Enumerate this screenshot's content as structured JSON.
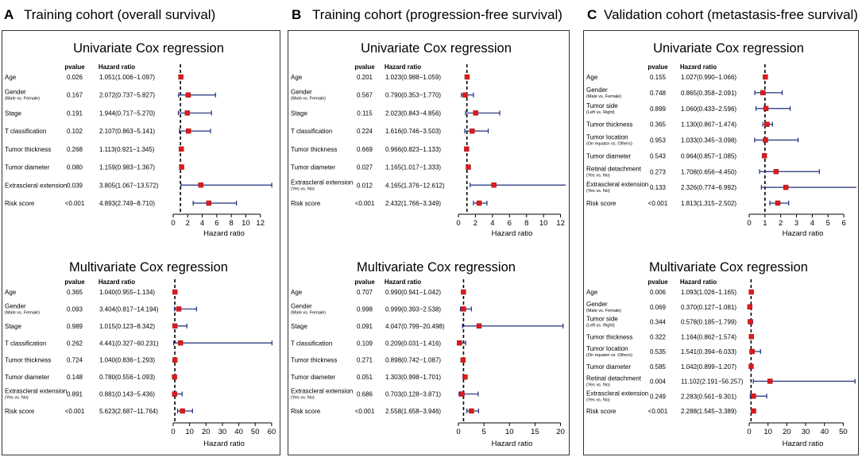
{
  "figure": {
    "panels": [
      {
        "letter": "A",
        "title": "Training cohort (overall survival)",
        "pvalue_header": "pvalue",
        "hr_header": "Hazard ratio",
        "xlabel": "Hazard ratio",
        "accent": "#e0191c",
        "ci_color": "#1f2f7a",
        "blocks": [
          {
            "title": "Univariate Cox regression",
            "chart_data": {
              "type": "forest",
              "reference": 1,
              "xlim": [
                0,
                14
              ],
              "ticks": [
                0,
                2,
                4,
                6,
                8,
                10,
                12
              ],
              "rows": [
                {
                  "label": "Age",
                  "sub": "",
                  "p": "0.026",
                  "hr_text": "1.051(1.006−1.097)",
                  "hr": 1.051,
                  "lo": 1.006,
                  "hi": 1.097
                },
                {
                  "label": "Gender",
                  "sub": "(Male vs. Female)",
                  "p": "0.167",
                  "hr_text": "2.072(0.737−5.827)",
                  "hr": 2.072,
                  "lo": 0.737,
                  "hi": 5.827
                },
                {
                  "label": "Stage",
                  "sub": "",
                  "p": "0.191",
                  "hr_text": "1.944(0.717−5.270)",
                  "hr": 1.944,
                  "lo": 0.717,
                  "hi": 5.27
                },
                {
                  "label": "T classification",
                  "sub": "",
                  "p": "0.102",
                  "hr_text": "2.107(0.863−5.141)",
                  "hr": 2.107,
                  "lo": 0.863,
                  "hi": 5.141
                },
                {
                  "label": "Tumor thickness",
                  "sub": "",
                  "p": "0.268",
                  "hr_text": "1.113(0.921−1.345)",
                  "hr": 1.113,
                  "lo": 0.921,
                  "hi": 1.345
                },
                {
                  "label": "Tumor diameter",
                  "sub": "",
                  "p": "0.080",
                  "hr_text": "1.159(0.983−1.367)",
                  "hr": 1.159,
                  "lo": 0.983,
                  "hi": 1.367
                },
                {
                  "label": "Extrascleral extension",
                  "sub": "",
                  "p": "0.039",
                  "hr_text": "3.805(1.067−13.572)",
                  "hr": 3.805,
                  "lo": 1.067,
                  "hi": 13.572
                },
                {
                  "label": "Risk score",
                  "sub": "",
                  "p": "<0.001",
                  "hr_text": "4.893(2.749−8.710)",
                  "hr": 4.893,
                  "lo": 2.749,
                  "hi": 8.71
                }
              ]
            }
          },
          {
            "title": "Multivariate Cox regression",
            "chart_data": {
              "type": "forest",
              "reference": 1,
              "xlim": [
                0,
                62
              ],
              "ticks": [
                0,
                10,
                20,
                30,
                40,
                50,
                60
              ],
              "rows": [
                {
                  "label": "Age",
                  "sub": "",
                  "p": "0.365",
                  "hr_text": "1.040(0.955−1.134)",
                  "hr": 1.04,
                  "lo": 0.955,
                  "hi": 1.134
                },
                {
                  "label": "Gender",
                  "sub": "(Male vs. Female)",
                  "p": "0.093",
                  "hr_text": "3.404(0.817−14.194)",
                  "hr": 3.404,
                  "lo": 0.817,
                  "hi": 14.194
                },
                {
                  "label": "Stage",
                  "sub": "",
                  "p": "0.989",
                  "hr_text": "1.015(0.123−8.342)",
                  "hr": 1.015,
                  "lo": 0.123,
                  "hi": 8.342
                },
                {
                  "label": "T classification",
                  "sub": "",
                  "p": "0.262",
                  "hr_text": "4.441(0.327−60.231)",
                  "hr": 4.441,
                  "lo": 0.327,
                  "hi": 60.231
                },
                {
                  "label": "Tumor thickness",
                  "sub": "",
                  "p": "0.724",
                  "hr_text": "1.040(0.836−1.293)",
                  "hr": 1.04,
                  "lo": 0.836,
                  "hi": 1.293
                },
                {
                  "label": "Tumor diameter",
                  "sub": "",
                  "p": "0.148",
                  "hr_text": "0.780(0.556−1.093)",
                  "hr": 0.78,
                  "lo": 0.556,
                  "hi": 1.093
                },
                {
                  "label": "Extrascleral extension",
                  "sub": "(Yes vs. No)",
                  "p": "0.891",
                  "hr_text": "0.881(0.143−5.436)",
                  "hr": 0.881,
                  "lo": 0.143,
                  "hi": 5.436
                },
                {
                  "label": "Risk score",
                  "sub": "",
                  "p": "<0.001",
                  "hr_text": "5.623(2.687−11.764)",
                  "hr": 5.623,
                  "lo": 2.687,
                  "hi": 11.764
                }
              ]
            }
          }
        ]
      },
      {
        "letter": "B",
        "title": "Training cohort (progression-free survival)",
        "pvalue_header": "pvalue",
        "hr_header": "Hazard ratio",
        "xlabel": "Hazard ratio",
        "accent": "#e0191c",
        "ci_color": "#1f2f7a",
        "blocks": [
          {
            "title": "Univariate Cox regression",
            "chart_data": {
              "type": "forest",
              "reference": 1,
              "xlim": [
                0,
                12.6
              ],
              "ticks": [
                0,
                2,
                4,
                6,
                8,
                10,
                12
              ],
              "rows": [
                {
                  "label": "Age",
                  "sub": "",
                  "p": "0.201",
                  "hr_text": "1.023(0.988−1.059)",
                  "hr": 1.023,
                  "lo": 0.988,
                  "hi": 1.059
                },
                {
                  "label": "Gender",
                  "sub": "(Male vs. Female)",
                  "p": "0.567",
                  "hr_text": "0.790(0.353−1.770)",
                  "hr": 0.79,
                  "lo": 0.353,
                  "hi": 1.77
                },
                {
                  "label": "Stage",
                  "sub": "",
                  "p": "0.115",
                  "hr_text": "2.023(0.843−4.856)",
                  "hr": 2.023,
                  "lo": 0.843,
                  "hi": 4.856
                },
                {
                  "label": "T classification",
                  "sub": "",
                  "p": "0.224",
                  "hr_text": "1.616(0.746−3.503)",
                  "hr": 1.616,
                  "lo": 0.746,
                  "hi": 3.503
                },
                {
                  "label": "Tumor thickness",
                  "sub": "",
                  "p": "0.669",
                  "hr_text": "0.966(0.823−1.133)",
                  "hr": 0.966,
                  "lo": 0.823,
                  "hi": 1.133
                },
                {
                  "label": "Tumor diameter",
                  "sub": "",
                  "p": "0.027",
                  "hr_text": "1.165(1.017−1.333)",
                  "hr": 1.165,
                  "lo": 1.017,
                  "hi": 1.333
                },
                {
                  "label": "Extrascleral extension",
                  "sub": "(Yes vs. No)",
                  "p": "0.012",
                  "hr_text": "4.165(1.376−12.612)",
                  "hr": 4.165,
                  "lo": 1.376,
                  "hi": 12.612
                },
                {
                  "label": "Risk score",
                  "sub": "",
                  "p": "<0.001",
                  "hr_text": "2.432(1.766−3.349)",
                  "hr": 2.432,
                  "lo": 1.766,
                  "hi": 3.349
                }
              ]
            }
          },
          {
            "title": "Multivariate Cox regression",
            "chart_data": {
              "type": "forest",
              "reference": 1,
              "xlim": [
                0,
                21
              ],
              "ticks": [
                0,
                5,
                10,
                15,
                20
              ],
              "rows": [
                {
                  "label": "Age",
                  "sub": "",
                  "p": "0.707",
                  "hr_text": "0.990(0.941−1.042)",
                  "hr": 0.99,
                  "lo": 0.941,
                  "hi": 1.042
                },
                {
                  "label": "Gender",
                  "sub": "(Male vs. Female)",
                  "p": "0.998",
                  "hr_text": "0.999(0.393−2.538)",
                  "hr": 0.999,
                  "lo": 0.393,
                  "hi": 2.538
                },
                {
                  "label": "Stage",
                  "sub": "",
                  "p": "0.091",
                  "hr_text": "4.047(0.799−20.498)",
                  "hr": 4.047,
                  "lo": 0.799,
                  "hi": 20.498
                },
                {
                  "label": "T classification",
                  "sub": "",
                  "p": "0.109",
                  "hr_text": "0.209(0.031−1.416)",
                  "hr": 0.209,
                  "lo": 0.031,
                  "hi": 1.416
                },
                {
                  "label": "Tumor thickness",
                  "sub": "",
                  "p": "0.271",
                  "hr_text": "0.898(0.742−1.087)",
                  "hr": 0.898,
                  "lo": 0.742,
                  "hi": 1.087
                },
                {
                  "label": "Tumor diameter",
                  "sub": "",
                  "p": "0.051",
                  "hr_text": "1.303(0.998−1.701)",
                  "hr": 1.303,
                  "lo": 0.998,
                  "hi": 1.701
                },
                {
                  "label": "Extrascleral extension",
                  "sub": "(Yes vs. No)",
                  "p": "0.686",
                  "hr_text": "0.703(0.128−3.871)",
                  "hr": 0.703,
                  "lo": 0.128,
                  "hi": 3.871
                },
                {
                  "label": "Risk score",
                  "sub": "",
                  "p": "<0.001",
                  "hr_text": "2.558(1.658−3.946)",
                  "hr": 2.558,
                  "lo": 1.658,
                  "hi": 3.946
                }
              ]
            }
          }
        ]
      },
      {
        "letter": "C",
        "title": "Validation cohort (metastasis-free survival)",
        "pvalue_header": "pvalue",
        "hr_header": "Hazard ratio",
        "xlabel": "Hazard ratio",
        "accent": "#e0191c",
        "ci_color": "#1f2f7a",
        "blocks": [
          {
            "title": "Univariate Cox regression",
            "chart_data": {
              "type": "forest",
              "reference": 1,
              "xlim": [
                0,
                6.8
              ],
              "ticks": [
                0,
                1,
                2,
                3,
                4,
                5,
                6
              ],
              "rows": [
                {
                  "label": "Age",
                  "sub": "",
                  "p": "0.155",
                  "hr_text": "1.027(0.990−1.066)",
                  "hr": 1.027,
                  "lo": 0.99,
                  "hi": 1.066
                },
                {
                  "label": "Gender",
                  "sub": "(Male vs. Female)",
                  "p": "0.748",
                  "hr_text": "0.865(0.358−2.091)",
                  "hr": 0.865,
                  "lo": 0.358,
                  "hi": 2.091
                },
                {
                  "label": "Tumor side",
                  "sub": "(Left vs. Right)",
                  "p": "0.899",
                  "hr_text": "1.060(0.433−2.596)",
                  "hr": 1.06,
                  "lo": 0.433,
                  "hi": 2.596
                },
                {
                  "label": "Tumor thickness",
                  "sub": "",
                  "p": "0.365",
                  "hr_text": "1.130(0.867−1.474)",
                  "hr": 1.13,
                  "lo": 0.867,
                  "hi": 1.474
                },
                {
                  "label": "Tumor location",
                  "sub": "(On equator vs. Others)",
                  "p": "0.953",
                  "hr_text": "1.033(0.345−3.098)",
                  "hr": 1.033,
                  "lo": 0.345,
                  "hi": 3.098
                },
                {
                  "label": "Tumor diameter",
                  "sub": "",
                  "p": "0.543",
                  "hr_text": "0.964(0.857−1.085)",
                  "hr": 0.964,
                  "lo": 0.857,
                  "hi": 1.085
                },
                {
                  "label": "Retinal detachment",
                  "sub": "(Yes vs. No)",
                  "p": "0.273",
                  "hr_text": "1.708(0.656−4.450)",
                  "hr": 1.708,
                  "lo": 0.656,
                  "hi": 4.45
                },
                {
                  "label": "Extrascleral extension",
                  "sub": "(Yes vs. No)",
                  "p": "0.133",
                  "hr_text": "2.326(0.774−6.992)",
                  "hr": 2.326,
                  "lo": 0.774,
                  "hi": 6.992
                },
                {
                  "label": "Risk score",
                  "sub": "",
                  "p": "<0.001",
                  "hr_text": "1.813(1.315−2.502)",
                  "hr": 1.813,
                  "lo": 1.315,
                  "hi": 2.502
                }
              ]
            }
          },
          {
            "title": "Multivariate Cox regression",
            "chart_data": {
              "type": "forest",
              "reference": 1,
              "xlim": [
                0,
                57
              ],
              "ticks": [
                0,
                10,
                20,
                30,
                40,
                50
              ],
              "rows": [
                {
                  "label": "Age",
                  "sub": "",
                  "p": "0.006",
                  "hr_text": "1.093(1.026−1.165)",
                  "hr": 1.093,
                  "lo": 1.026,
                  "hi": 1.165
                },
                {
                  "label": "Gender",
                  "sub": "(Male vs. Female)",
                  "p": "0.069",
                  "hr_text": "0.370(0.127−1.081)",
                  "hr": 0.37,
                  "lo": 0.127,
                  "hi": 1.081
                },
                {
                  "label": "Tumor side",
                  "sub": "(Left vs. Right)",
                  "p": "0.344",
                  "hr_text": "0.578(0.185−1.799)",
                  "hr": 0.578,
                  "lo": 0.185,
                  "hi": 1.799
                },
                {
                  "label": "Tumor thickness",
                  "sub": "",
                  "p": "0.322",
                  "hr_text": "1.164(0.862−1.574)",
                  "hr": 1.164,
                  "lo": 0.862,
                  "hi": 1.574
                },
                {
                  "label": "Tumor location",
                  "sub": "(On equator vs. Others)",
                  "p": "0.535",
                  "hr_text": "1.541(0.394−6.033)",
                  "hr": 1.541,
                  "lo": 0.394,
                  "hi": 6.033
                },
                {
                  "label": "Tumor diameter",
                  "sub": "",
                  "p": "0.585",
                  "hr_text": "1.042(0.899−1.207)",
                  "hr": 1.042,
                  "lo": 0.899,
                  "hi": 1.207
                },
                {
                  "label": "Retinal detachment",
                  "sub": "(Yes vs. No)",
                  "p": "0.004",
                  "hr_text": "11.102(2.191−56.257)",
                  "hr": 11.102,
                  "lo": 2.191,
                  "hi": 56.257
                },
                {
                  "label": "Extrascleral extension",
                  "sub": "(Yes vs. No)",
                  "p": "0.249",
                  "hr_text": "2.283(0.561−9.301)",
                  "hr": 2.283,
                  "lo": 0.561,
                  "hi": 9.301
                },
                {
                  "label": "Risk score",
                  "sub": "",
                  "p": "<0.001",
                  "hr_text": "2.288(1.545−3.389)",
                  "hr": 2.288,
                  "lo": 1.545,
                  "hi": 3.389
                }
              ]
            }
          }
        ]
      }
    ]
  }
}
